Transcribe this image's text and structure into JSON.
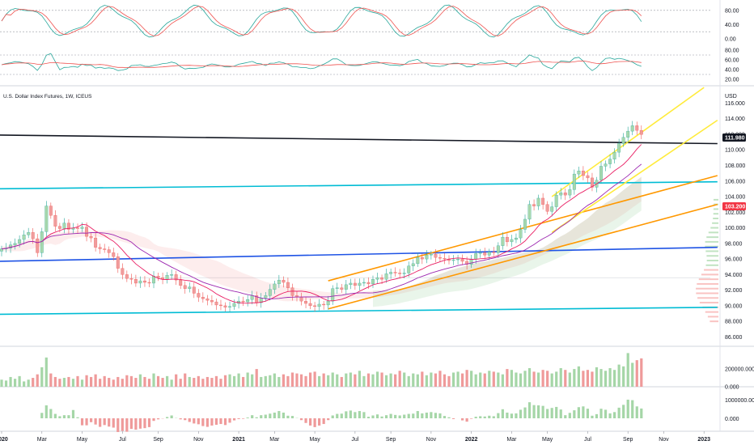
{
  "chart_data": {
    "type": "candlestick",
    "title": "U.S. Dollar Index Futures, 1W, ICEUS",
    "unit": "USD",
    "price_axis": {
      "ticks": [
        "116.000",
        "114.000",
        "112.000",
        "110.000",
        "108.000",
        "106.000",
        "104.000",
        "102.000",
        "100.000",
        "98.000",
        "96.000",
        "94.000",
        "92.000",
        "90.000",
        "88.000",
        "86.000"
      ],
      "ylim": [
        84.8,
        117.6
      ]
    },
    "badges": {
      "last_price": "111.980",
      "ma_value": "103.200"
    },
    "colors": {
      "up": "#26a69a",
      "down": "#ef5350",
      "up_volume": "#a5d6a7",
      "down_volume": "#ef9a9a",
      "last_badge": "#131722",
      "ma_badge": "#f23645"
    },
    "time_axis": {
      "labels": [
        "2020",
        "Mar",
        "May",
        "Jul",
        "Sep",
        "Nov",
        "2021",
        "Mar",
        "May",
        "Jul",
        "Sep",
        "Nov",
        "2022",
        "Mar",
        "May",
        "Jul",
        "Sep",
        "Nov",
        "2023"
      ],
      "positions_week": [
        0,
        9,
        18,
        27,
        35,
        44,
        53,
        61,
        70,
        79,
        87,
        96,
        105,
        114,
        122,
        131,
        140,
        148,
        157
      ]
    },
    "weekly_close": [
      97.3,
      97.4,
      97.8,
      98.0,
      98.5,
      99.1,
      99.4,
      98.6,
      96.8,
      99.5,
      102.8,
      101.6,
      100.2,
      99.9,
      100.6,
      99.8,
      100.0,
      99.9,
      100.1,
      98.9,
      98.7,
      97.5,
      97.3,
      97.2,
      96.8,
      96.3,
      94.8,
      94.0,
      93.5,
      93.4,
      92.9,
      93.2,
      93.0,
      92.9,
      93.8,
      93.6,
      93.4,
      93.9,
      94.0,
      93.3,
      92.6,
      92.2,
      92.4,
      91.6,
      91.1,
      90.9,
      90.7,
      90.5,
      90.1,
      90.0,
      89.8,
      89.9,
      90.3,
      90.6,
      90.5,
      90.8,
      91.3,
      90.4,
      91.0,
      91.3,
      92.1,
      92.8,
      93.3,
      93.0,
      92.3,
      91.3,
      91.1,
      90.6,
      90.3,
      90.0,
      89.9,
      90.2,
      90.1,
      90.6,
      92.2,
      92.3,
      92.1,
      92.7,
      92.9,
      92.6,
      92.9,
      93.0,
      92.8,
      93.4,
      93.6,
      93.4,
      94.1,
      94.3,
      94.2,
      94.1,
      94.2,
      95.1,
      95.4,
      96.2,
      96.0,
      96.5,
      96.6,
      96.2,
      96.1,
      96.0,
      95.8,
      95.9,
      96.0,
      95.7,
      95.3,
      96.0,
      96.7,
      96.8,
      96.5,
      96.9,
      96.8,
      97.7,
      98.8,
      98.2,
      98.5,
      98.7,
      99.8,
      101.1,
      103.0,
      102.8,
      103.8,
      103.0,
      102.1,
      102.7,
      104.2,
      104.5,
      104.2,
      104.9,
      106.9,
      107.3,
      106.7,
      106.4,
      105.2,
      106.1,
      107.9,
      108.2,
      108.8,
      109.7,
      110.8,
      111.6,
      112.4,
      113.1,
      112.5,
      111.98
    ],
    "weekly_volume": [
      80000,
      70000,
      110000,
      90000,
      120000,
      60000,
      80000,
      100000,
      140000,
      220000,
      330000,
      150000,
      110000,
      90000,
      100000,
      110000,
      90000,
      120000,
      80000,
      130000,
      110000,
      140000,
      90000,
      120000,
      100000,
      80000,
      110000,
      90000,
      130000,
      120000,
      100000,
      140000,
      110000,
      90000,
      150000,
      120000,
      100000,
      120000,
      80000,
      140000,
      90000,
      150000,
      110000,
      100000,
      120000,
      90000,
      110000,
      100000,
      120000,
      90000,
      130000,
      140000,
      120000,
      150000,
      110000,
      160000,
      140000,
      200000,
      110000,
      120000,
      130000,
      150000,
      110000,
      140000,
      120000,
      160000,
      150000,
      140000,
      120000,
      160000,
      170000,
      120000,
      150000,
      130000,
      160000,
      140000,
      110000,
      150000,
      160000,
      140000,
      180000,
      120000,
      150000,
      140000,
      170000,
      160000,
      130000,
      150000,
      140000,
      180000,
      160000,
      120000,
      150000,
      140000,
      170000,
      130000,
      160000,
      150000,
      180000,
      140000,
      120000,
      160000,
      170000,
      150000,
      190000,
      180000,
      140000,
      160000,
      150000,
      180000,
      170000,
      160000,
      140000,
      200000,
      190000,
      160000,
      150000,
      180000,
      210000,
      170000,
      160000,
      190000,
      180000,
      150000,
      170000,
      210000,
      190000,
      160000,
      200000,
      230000,
      180000,
      190000,
      170000,
      220000,
      200000,
      180000,
      210000,
      190000,
      250000,
      230000,
      380000,
      270000,
      300000,
      320000
    ],
    "volume_axis": {
      "ticks": [
        "200000.000",
        "0.000"
      ],
      "ylim": [
        0,
        420000
      ]
    },
    "oscillator_axis": {
      "ticks": [
        "80.00",
        "40.00",
        "0.00"
      ]
    },
    "rsi_axis": {
      "ticks": [
        "80.00",
        "60.00",
        "40.00",
        "20.00"
      ]
    },
    "macd_axis": {
      "ticks": [
        "1000000.000",
        "0.000"
      ]
    }
  }
}
